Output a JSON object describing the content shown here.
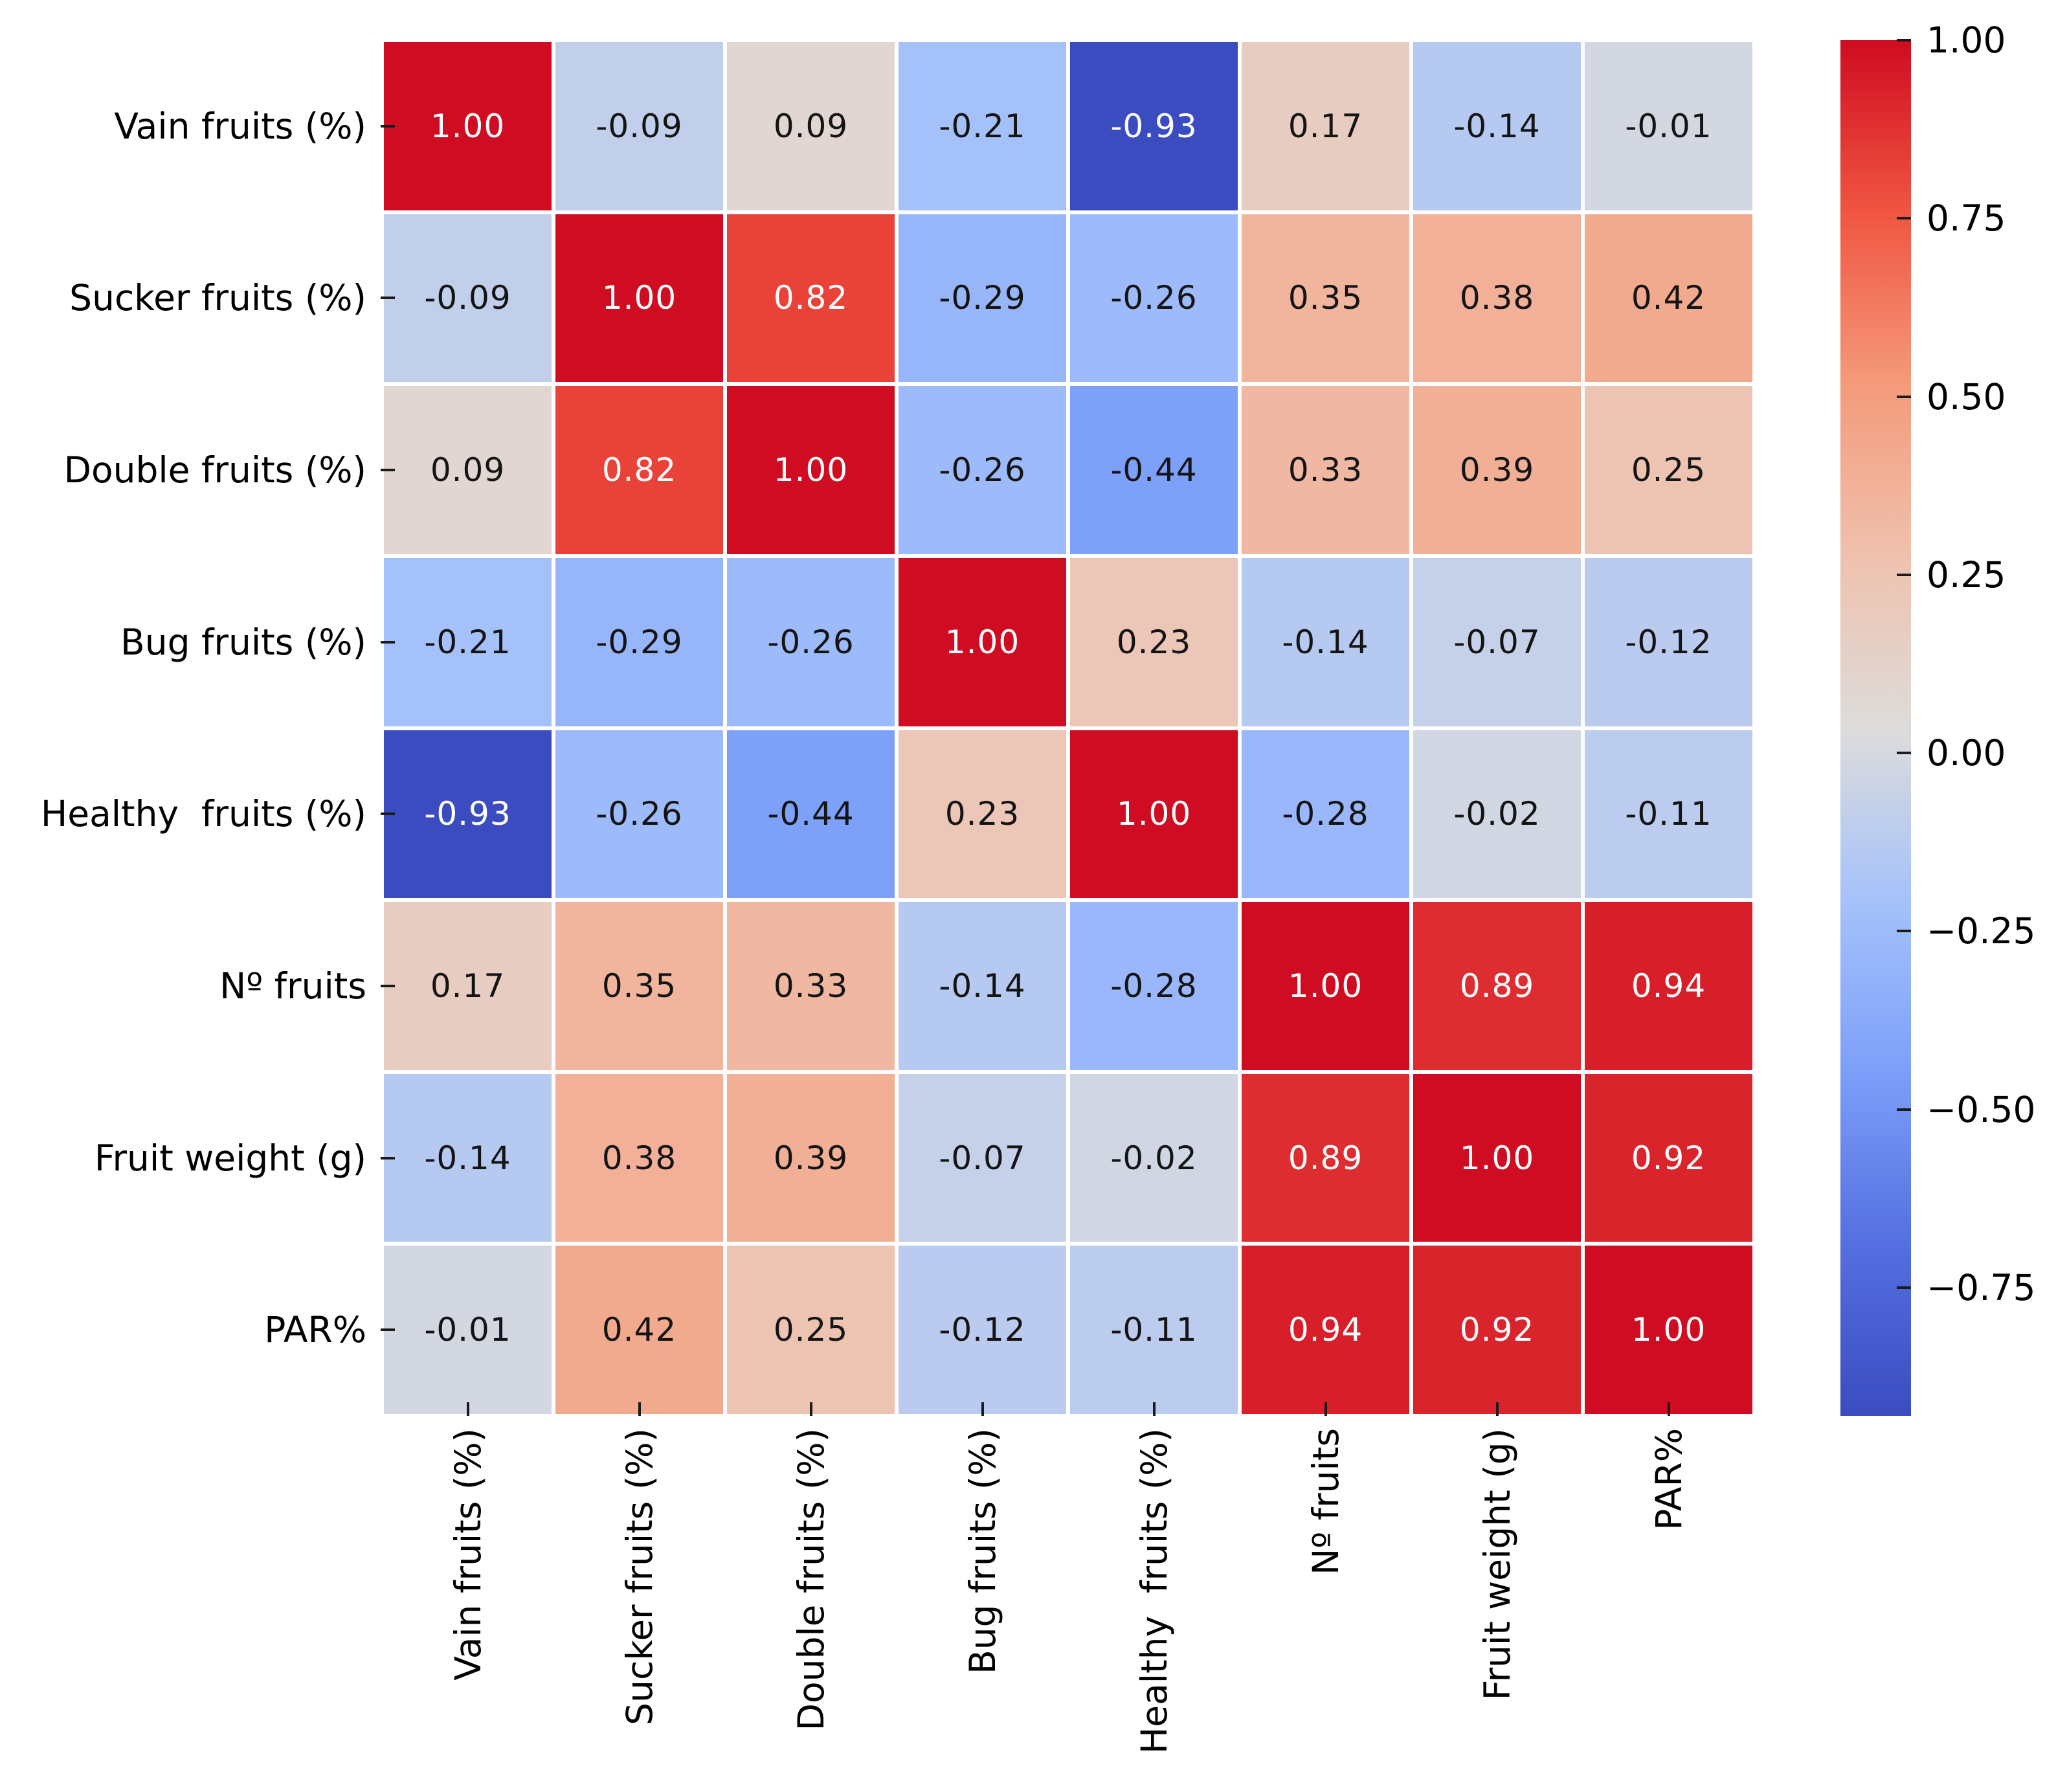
{
  "figure": {
    "background_color": "#ffffff",
    "axis_tick_color": "#1a1a1a",
    "grid_line_color": "#ffffff"
  },
  "chart_data": {
    "type": "heatmap",
    "title": "",
    "description": "Correlation matrix heatmap of fruit quality traits with annotated Pearson coefficients",
    "variables": [
      "Vain fruits (%)",
      "Sucker fruits (%)",
      "Double fruits (%)",
      "Bug fruits (%)",
      "Healthy  fruits (%)",
      "Nº fruits",
      "Fruit weight (g)",
      "PAR%"
    ],
    "matrix": [
      [
        1.0,
        -0.09,
        0.09,
        -0.21,
        -0.93,
        0.17,
        -0.14,
        -0.01
      ],
      [
        -0.09,
        1.0,
        0.82,
        -0.29,
        -0.26,
        0.35,
        0.38,
        0.42
      ],
      [
        0.09,
        0.82,
        1.0,
        -0.26,
        -0.44,
        0.33,
        0.39,
        0.25
      ],
      [
        -0.21,
        -0.29,
        -0.26,
        1.0,
        0.23,
        -0.14,
        -0.07,
        -0.12
      ],
      [
        -0.93,
        -0.26,
        -0.44,
        0.23,
        1.0,
        -0.28,
        -0.02,
        -0.11
      ],
      [
        0.17,
        0.35,
        0.33,
        -0.14,
        -0.28,
        1.0,
        0.89,
        0.94
      ],
      [
        -0.14,
        0.38,
        0.39,
        -0.07,
        -0.02,
        0.89,
        1.0,
        0.92
      ],
      [
        -0.01,
        0.42,
        0.25,
        -0.12,
        -0.11,
        0.94,
        0.92,
        1.0
      ]
    ],
    "value_decimals": 2,
    "normalization": {
      "vmin": -0.93,
      "vmax": 1.0
    },
    "colormap": {
      "name": "coolwarm-diverging",
      "anchors": [
        {
          "t": 0.0,
          "color": "#3b4cc0"
        },
        {
          "t": 0.125,
          "color": "#546fe0"
        },
        {
          "t": 0.25,
          "color": "#7c9ff9"
        },
        {
          "t": 0.375,
          "color": "#a6c2fa"
        },
        {
          "t": 0.5,
          "color": "#dddcdb"
        },
        {
          "t": 0.625,
          "color": "#efc1ad"
        },
        {
          "t": 0.75,
          "color": "#f49a7b"
        },
        {
          "t": 0.875,
          "color": "#f05541"
        },
        {
          "t": 1.0,
          "color": "#cf0c21"
        }
      ]
    },
    "cell_text_colors": {
      "dark": "#141414",
      "light": "#ffffff"
    },
    "colorbar": {
      "position": "right",
      "tick_labels": [
        "1.00",
        "0.75",
        "0.50",
        "0.25",
        "0.00",
        "−0.25",
        "−0.50",
        "−0.75"
      ],
      "tick_values": [
        1.0,
        0.75,
        0.5,
        0.25,
        0.0,
        -0.25,
        -0.5,
        -0.75
      ]
    },
    "legend_position": "right colorbar",
    "grid": "white 6px separators between cells",
    "x_tick_label_rotation_deg": 90
  }
}
